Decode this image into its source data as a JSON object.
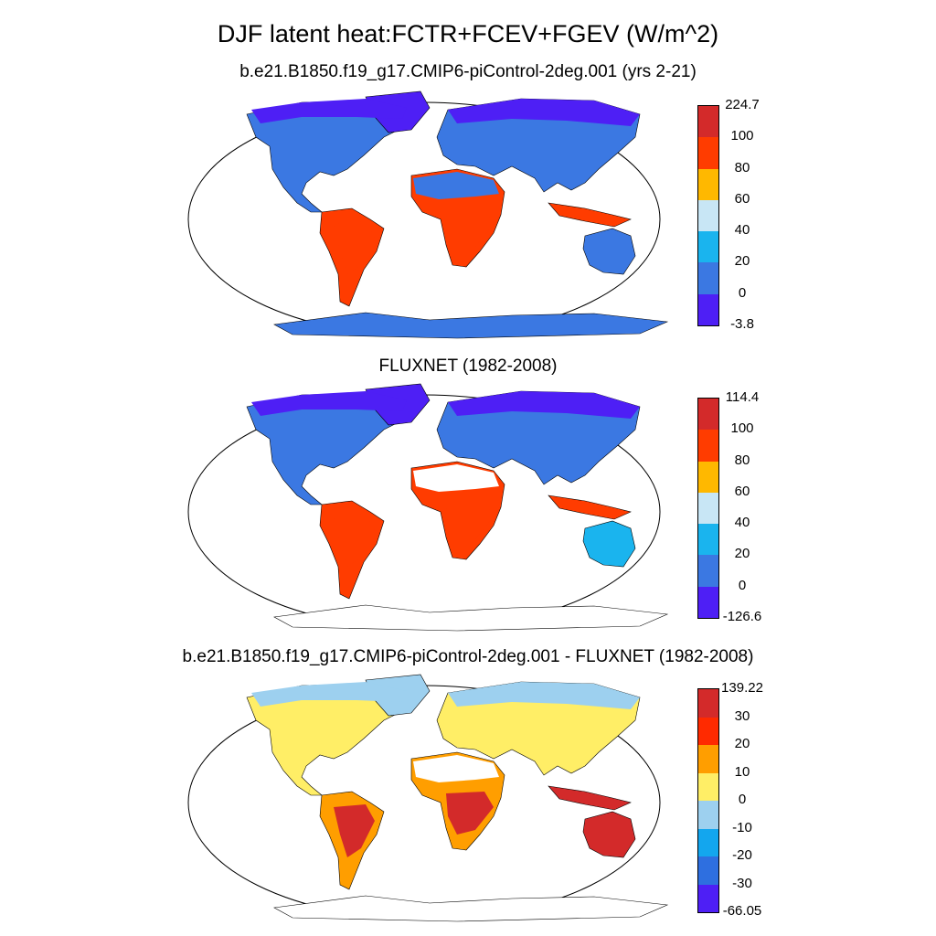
{
  "title": "DJF latent heat:FCTR+FCEV+FGEV (W/m^2)",
  "panels": [
    {
      "subtitle": "b.e21.B1850.f19_g17.CMIP6-piControl-2deg.001 (yrs 2-21)",
      "colorbar": {
        "labels": [
          "224.7",
          "100",
          "80",
          "60",
          "40",
          "20",
          "0",
          "-3.8"
        ],
        "colors": [
          "#d32a2a",
          "#ff3c00",
          "#ffb800",
          "#c8e6f5",
          "#1ab4ee",
          "#3b78e2",
          "#4e1ff5"
        ]
      }
    },
    {
      "subtitle": "FLUXNET (1982-2008)",
      "colorbar": {
        "labels": [
          "114.4",
          "100",
          "80",
          "60",
          "40",
          "20",
          "0",
          "-126.6"
        ],
        "colors": [
          "#d32a2a",
          "#ff3c00",
          "#ffb800",
          "#c8e6f5",
          "#1ab4ee",
          "#3b78e2",
          "#4e1ff5"
        ]
      }
    },
    {
      "subtitle": "b.e21.B1850.f19_g17.CMIP6-piControl-2deg.001 - FLUXNET (1982-2008)",
      "colorbar": {
        "labels": [
          "139.22",
          "30",
          "20",
          "10",
          "0",
          "-10",
          "-20",
          "-30",
          "-66.05"
        ],
        "colors": [
          "#d32a2a",
          "#ff2a00",
          "#ff9e00",
          "#ffee66",
          "#9dd0ef",
          "#13a6ee",
          "#2e6fe0",
          "#4e1ff5"
        ]
      }
    }
  ],
  "map_fills": {
    "panel_1": {
      "polar_north": "#4e1ff5",
      "mid_north": "#3b78e2",
      "sahara": "#3b78e2",
      "tropics": "#ff3c00",
      "south": "#ff3c00",
      "australia": "#3b78e2",
      "antarctica": "#3b78e2"
    },
    "panel_2": {
      "polar_north": "#4e1ff5",
      "mid_north": "#3b78e2",
      "sahara": "#ffffff",
      "tropics": "#ff3c00",
      "south": "#ff3c00",
      "australia": "#1ab4ee"
    },
    "panel_3": {
      "polar_north": "#9dd0ef",
      "mid_north": "#ffee66",
      "sahara": "#ffffff",
      "tropics": "#ff9e00",
      "south": "#d32a2a",
      "australia": "#d32a2a"
    }
  }
}
